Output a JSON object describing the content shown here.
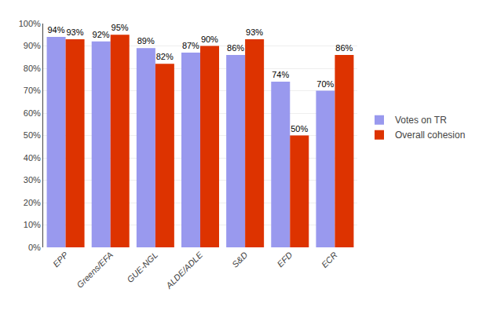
{
  "chart_data": {
    "type": "bar",
    "categories": [
      "EPP",
      "Greens/EFA",
      "GUE-NGL",
      "ALDE/ADLE",
      "S&D",
      "EFD",
      "ECR"
    ],
    "series": [
      {
        "name": "Votes on TR",
        "color": "#9999EE",
        "values": [
          94,
          92,
          89,
          87,
          86,
          74,
          70
        ],
        "value_labels": [
          "94%",
          "92%",
          "89%",
          "87%",
          "86%",
          "74%",
          "70%"
        ]
      },
      {
        "name": "Overall cohesion",
        "color": "#DD3300",
        "values": [
          93,
          95,
          82,
          90,
          93,
          50,
          86
        ],
        "value_labels": [
          "93%",
          "95%",
          "82%",
          "90%",
          "93%",
          "50%",
          "86%"
        ]
      }
    ],
    "ylim": [
      0,
      100
    ],
    "yticks": [
      {
        "value": 0,
        "label": "0%"
      },
      {
        "value": 10,
        "label": "10%"
      },
      {
        "value": 20,
        "label": "20%"
      },
      {
        "value": 30,
        "label": "30%"
      },
      {
        "value": 40,
        "label": "40%"
      },
      {
        "value": 50,
        "label": "50%"
      },
      {
        "value": 60,
        "label": "60%"
      },
      {
        "value": 70,
        "label": "70%"
      },
      {
        "value": 80,
        "label": "80%"
      },
      {
        "value": 90,
        "label": "90%"
      },
      {
        "value": 100,
        "label": "100%"
      }
    ],
    "grid": true,
    "legend": "right",
    "data_labels": true
  }
}
